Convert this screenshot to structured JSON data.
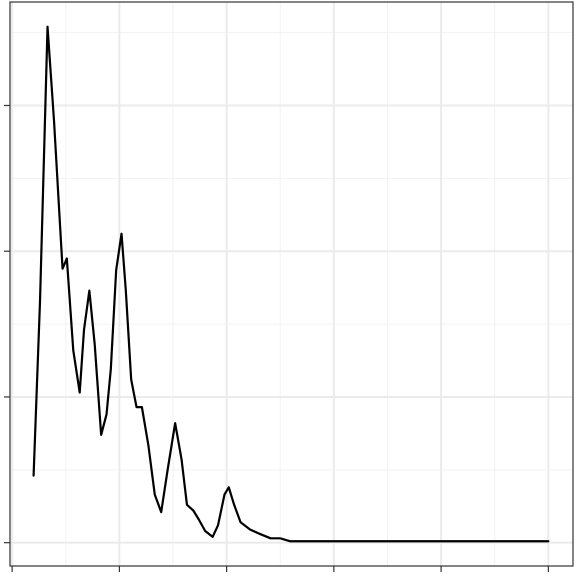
{
  "chart_data": {
    "type": "line",
    "x": [
      0.2,
      0.26,
      0.33,
      0.39,
      0.47,
      0.51,
      0.57,
      0.63,
      0.67,
      0.72,
      0.77,
      0.83,
      0.88,
      0.92,
      0.97,
      1.02,
      1.06,
      1.11,
      1.16,
      1.21,
      1.27,
      1.33,
      1.39,
      1.45,
      1.52,
      1.58,
      1.63,
      1.69,
      1.74,
      1.8,
      1.87,
      1.92,
      1.98,
      2.02,
      2.07,
      2.13,
      2.22,
      2.31,
      2.41,
      2.5,
      2.59,
      2.78,
      3.0,
      3.15,
      3.62,
      4.55,
      5.0
    ],
    "series": [
      {
        "color": "#000000",
        "values": [
          0.46,
          1.66,
          3.54,
          2.9,
          1.88,
          1.95,
          1.32,
          1.03,
          1.46,
          1.73,
          1.36,
          0.74,
          0.88,
          1.19,
          1.87,
          2.12,
          1.73,
          1.12,
          0.93,
          0.93,
          0.67,
          0.33,
          0.21,
          0.5,
          0.82,
          0.57,
          0.26,
          0.22,
          0.16,
          0.08,
          0.04,
          0.12,
          0.33,
          0.38,
          0.26,
          0.14,
          0.09,
          0.06,
          0.03,
          0.03,
          0.01,
          0.01,
          0.01,
          0.01,
          0.01,
          0.01,
          0.01
        ]
      }
    ],
    "xlim": [
      -0.02,
      5.23
    ],
    "ylim": [
      -0.16,
      3.71
    ],
    "xticks": [
      0,
      1,
      2,
      3,
      4,
      5
    ],
    "yticks": [
      0,
      1,
      2,
      3
    ],
    "xminor": [
      0.5,
      1.5,
      2.5,
      3.5,
      4.5
    ],
    "yminor": [
      0.5,
      1.5,
      2.5,
      3.5
    ],
    "grid": true
  }
}
